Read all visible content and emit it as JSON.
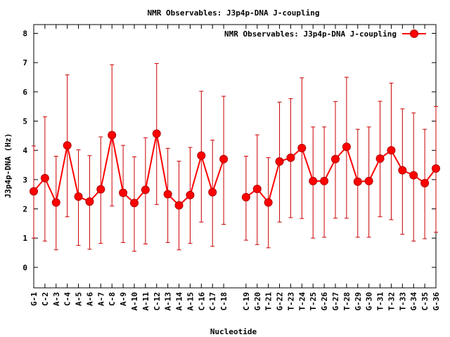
{
  "chart_data": {
    "type": "line",
    "title": "NMR Observables: J3p4p-DNA J-coupling",
    "xlabel": "Nucleotide",
    "ylabel": "J3p4p-DNA (Hz)",
    "ylim": [
      -0.7,
      8.3
    ],
    "yticks": [
      0,
      1,
      2,
      3,
      4,
      5,
      6,
      7,
      8
    ],
    "legend": {
      "label": "NMR Observables: J3p4p-DNA J-coupling",
      "position": "top-right"
    },
    "colors": {
      "series": "#ff0000",
      "errorbar": "#cc0000",
      "marker_edge": "#b00000"
    },
    "categories": [
      "G-1",
      "C-2",
      "A-3",
      "C-4",
      "A-5",
      "A-6",
      "A-7",
      "C-8",
      "A-9",
      "A-10",
      "A-11",
      "C-12",
      "A-13",
      "A-14",
      "A-15",
      "C-16",
      "C-17",
      "C-18",
      "C-19",
      "G-20",
      "T-21",
      "G-22",
      "T-23",
      "T-24",
      "T-25",
      "G-26",
      "G-27",
      "T-28",
      "G-29",
      "G-30",
      "T-31",
      "T-32",
      "T-33",
      "G-34",
      "C-35",
      "G-36"
    ],
    "x": [
      1,
      2,
      3,
      4,
      5,
      6,
      7,
      8,
      9,
      10,
      11,
      12,
      13,
      14,
      15,
      16,
      17,
      18,
      20,
      21,
      22,
      23,
      24,
      25,
      26,
      27,
      28,
      29,
      30,
      31,
      32,
      33,
      34,
      35,
      36,
      37
    ],
    "series": [
      {
        "name": "NMR Observables: J3p4p-DNA J-coupling",
        "segments": [
          [
            2.6,
            3.05,
            2.22,
            4.17,
            2.42,
            2.25,
            2.67,
            4.52,
            2.55,
            2.2,
            2.65,
            4.57,
            2.5,
            2.12,
            2.47,
            3.82,
            2.57,
            3.7
          ],
          [
            2.4,
            2.68,
            2.22,
            3.62,
            3.75,
            4.08,
            2.95,
            2.95,
            3.7,
            4.12,
            2.93,
            2.95,
            3.72,
            4.0,
            3.32,
            3.15,
            2.88,
            3.38
          ]
        ],
        "values": [
          2.6,
          3.05,
          2.22,
          4.17,
          2.42,
          2.25,
          2.67,
          4.52,
          2.55,
          2.2,
          2.65,
          4.57,
          2.5,
          2.12,
          2.47,
          3.82,
          2.57,
          3.7,
          2.4,
          2.68,
          2.22,
          3.62,
          3.75,
          4.08,
          2.95,
          2.95,
          3.7,
          4.12,
          2.93,
          2.95,
          3.72,
          4.0,
          3.32,
          3.15,
          2.88,
          3.38
        ],
        "err_low": [
          1.0,
          0.9,
          0.6,
          1.73,
          0.75,
          0.62,
          0.82,
          2.1,
          0.85,
          0.55,
          0.8,
          2.15,
          0.85,
          0.6,
          0.82,
          1.55,
          0.72,
          1.47,
          0.93,
          0.78,
          0.67,
          1.55,
          1.7,
          1.67,
          1.0,
          1.03,
          1.68,
          1.68,
          1.03,
          1.03,
          1.73,
          1.63,
          1.13,
          0.9,
          0.98,
          1.2
        ],
        "err_high": [
          4.15,
          5.15,
          3.8,
          6.58,
          4.02,
          3.82,
          4.46,
          6.93,
          4.17,
          3.78,
          4.43,
          6.97,
          4.07,
          3.63,
          4.1,
          6.02,
          4.35,
          5.85,
          3.8,
          4.53,
          3.75,
          5.65,
          5.77,
          6.48,
          4.8,
          4.8,
          5.67,
          6.5,
          4.72,
          4.8,
          5.68,
          6.3,
          5.42,
          5.28,
          4.72,
          5.5
        ]
      }
    ]
  }
}
